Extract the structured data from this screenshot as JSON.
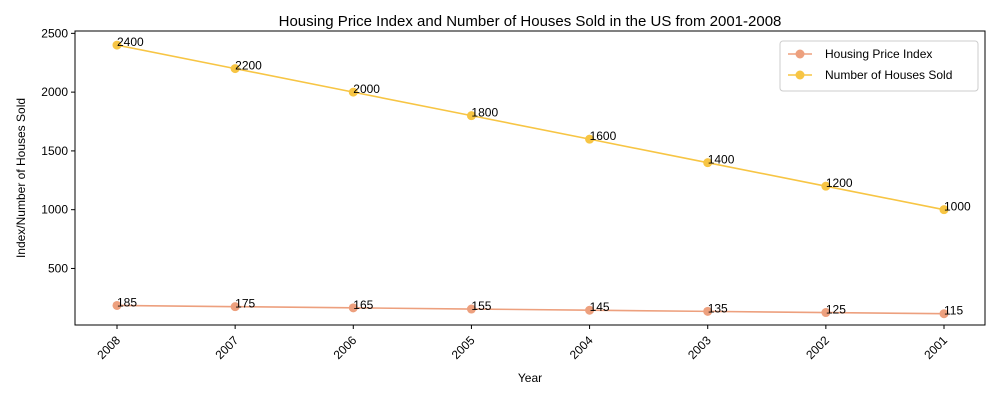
{
  "chart_data": {
    "type": "line",
    "title": "Housing Price Index and Number of Houses Sold in the US from 2001-2008",
    "xlabel": "Year",
    "ylabel": "Index/Number of Houses Sold",
    "categories": [
      "2008",
      "2007",
      "2006",
      "2005",
      "2004",
      "2003",
      "2002",
      "2001"
    ],
    "series": [
      {
        "name": "Housing Price Index",
        "values": [
          185,
          175,
          165,
          155,
          145,
          135,
          125,
          115
        ],
        "color": "#eda07e"
      },
      {
        "name": "Number of Houses Sold",
        "values": [
          2400,
          2200,
          2000,
          1800,
          1600,
          1400,
          1200,
          1000
        ],
        "color": "#f7c544"
      }
    ],
    "yticks": [
      500,
      1000,
      1500,
      2000,
      2500
    ],
    "ylim": [
      19,
      2520
    ],
    "grid": false,
    "legend_position": "top-right",
    "x_tick_rotation": 45,
    "data_labels": true
  }
}
